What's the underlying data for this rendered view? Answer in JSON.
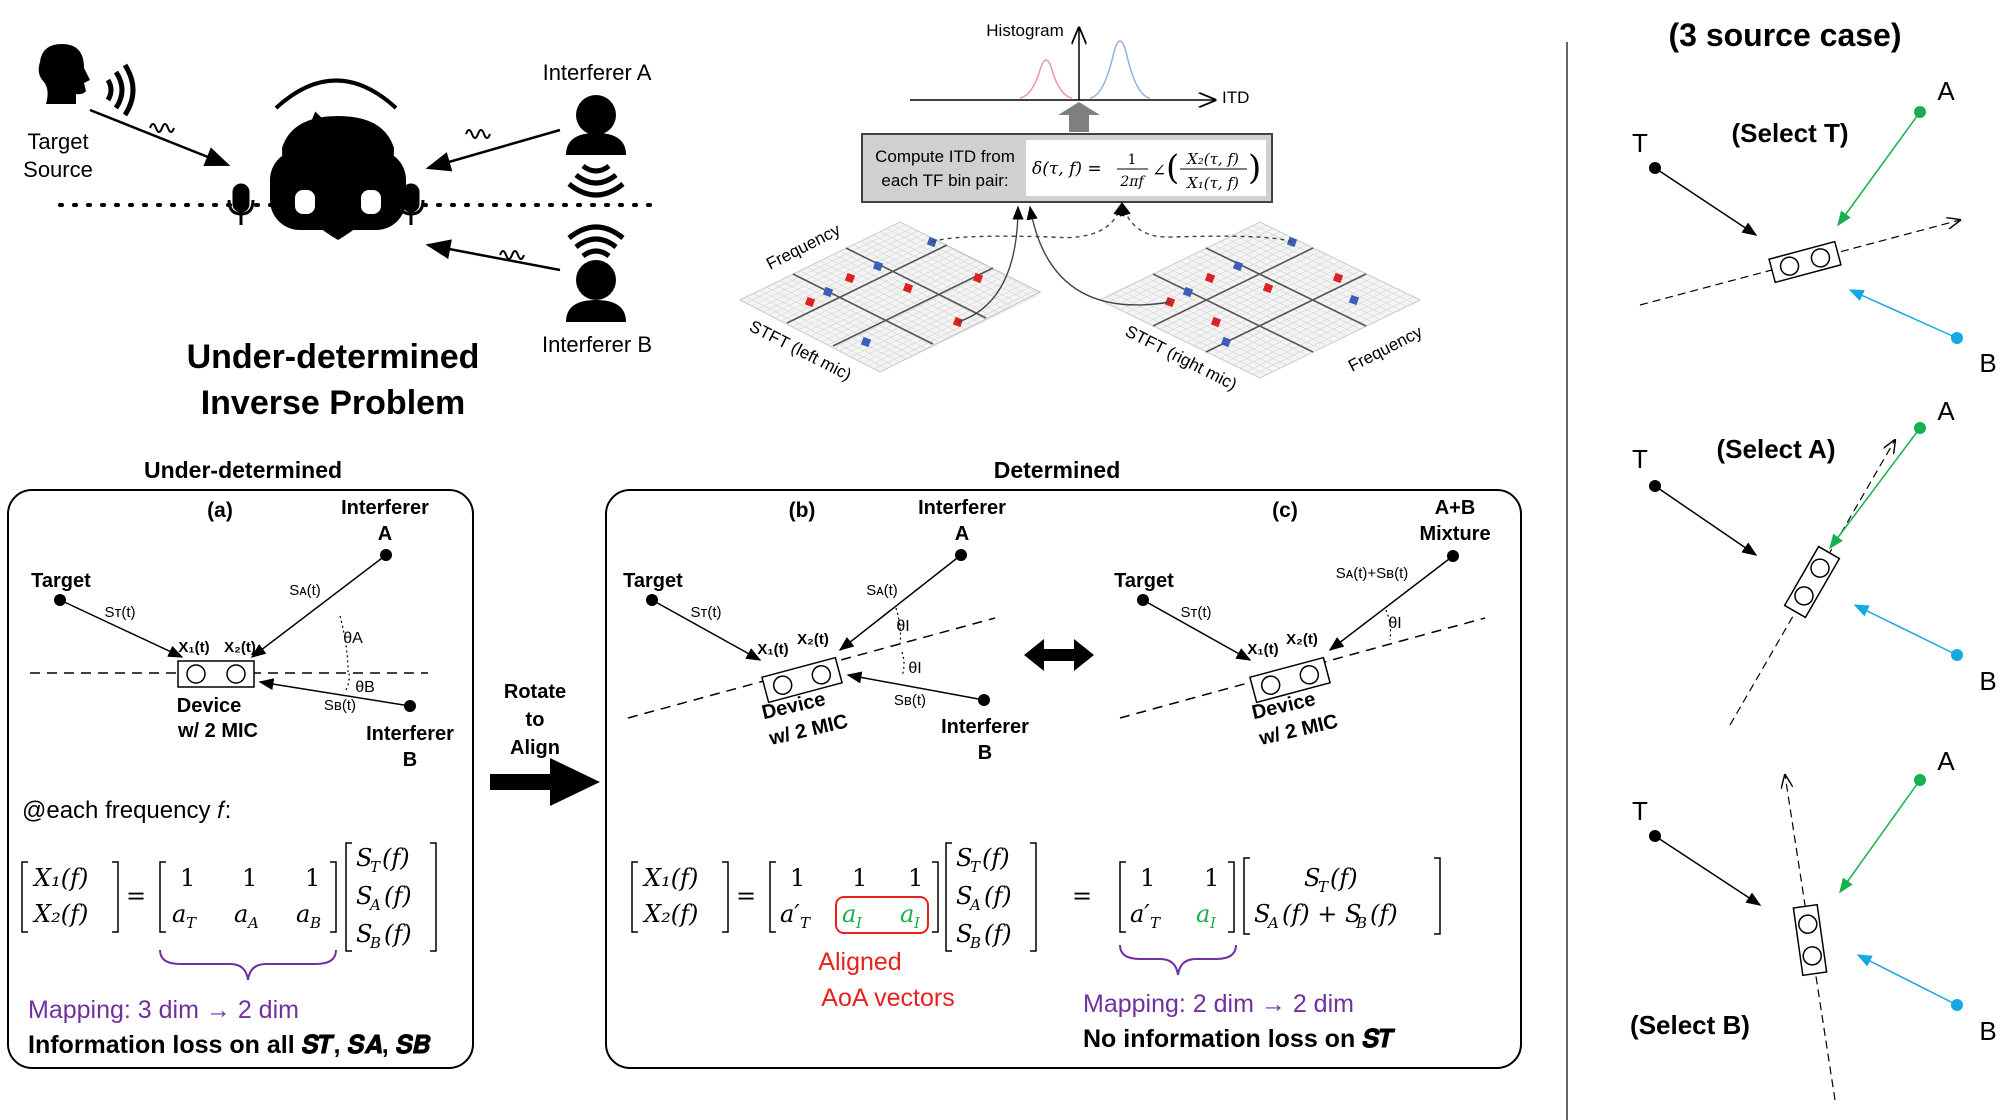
{
  "top": {
    "target_source": [
      "Target",
      "Source"
    ],
    "interferer_a": "Interferer A",
    "interferer_b": "Interferer B",
    "problem_title": [
      "Under-determined",
      "Inverse Problem"
    ]
  },
  "itd": {
    "histogram_label": "Histogram",
    "itd_axis": "ITD",
    "compute_label": [
      "Compute ITD from",
      "each TF bin pair:"
    ],
    "formula_lhs": "δ(τ, f) =",
    "formula_frac_num": "1",
    "formula_frac_den": "2πf",
    "formula_angle": "∠",
    "formula_num": "X₂(τ, f)",
    "formula_den": "X₁(τ, f)",
    "frequency_left": "Frequency",
    "stft_left": "STFT (left mic)",
    "stft_right": "STFT (right mic)",
    "frequency_right": "Frequency"
  },
  "panel_a": {
    "header": "Under-determined",
    "tag": "(a)",
    "target": "Target",
    "interferer": [
      "Interferer",
      "A"
    ],
    "interferer_b": [
      "Interferer",
      "B"
    ],
    "st": "Sᴛ(t)",
    "sa": "Sᴀ(t)",
    "sb": "Sʙ(t)",
    "x1": "X₁(t)",
    "x2": "X₂(t)",
    "theta_a": "θA",
    "theta_b": "θB",
    "device": [
      "Device",
      "w/ 2 MIC"
    ],
    "freq_note": "@each frequency 𝑓:",
    "mapping": "Mapping: 3 dim → 2 dim",
    "loss": "Information loss on all 𝑺𝑻, 𝑺𝑨, 𝑺𝑩"
  },
  "rotate": [
    "Rotate",
    "to",
    "Align"
  ],
  "panel_bc": {
    "header": "Determined",
    "tag_b": "(b)",
    "tag_c": "(c)",
    "target": "Target",
    "interferer_a": [
      "Interferer",
      "A"
    ],
    "interferer_b": [
      "Interferer",
      "B"
    ],
    "mixture": [
      "A+B",
      "Mixture"
    ],
    "theta_i": "θI",
    "device": [
      "Device",
      "w/ 2 MIC"
    ],
    "aligned": [
      "Aligned",
      "AoA vectors"
    ],
    "mapping": "Mapping: 2 dim → 2 dim",
    "no_loss": "No information loss on 𝑺𝑻"
  },
  "right": {
    "title": "(3 source case)",
    "select_t": "(Select T)",
    "select_a": "(Select A)",
    "select_b": "(Select B)",
    "t": "T",
    "a": "A",
    "b": "B"
  },
  "colors": {
    "purple": "#7030a0",
    "red": "#e8211d",
    "green": "#16b04e",
    "cyan": "#16a8e0"
  }
}
